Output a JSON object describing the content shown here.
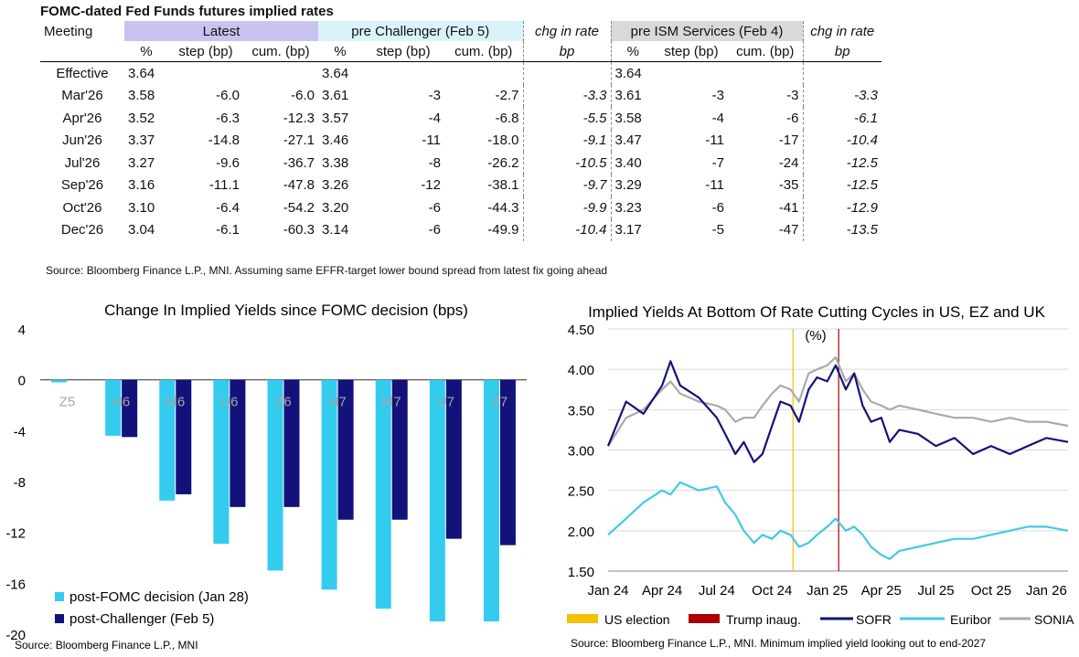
{
  "table": {
    "title": "FOMC-dated Fed Funds futures implied rates",
    "group_headers": {
      "meeting": "Meeting",
      "latest": "Latest",
      "pre_challenger": "pre Challenger (Feb 5)",
      "chg1": "chg in rate",
      "pre_ism": "pre ISM Services (Feb 4)",
      "chg2": "chg in rate"
    },
    "sub_headers": [
      "%",
      "step (bp)",
      "cum. (bp)",
      "%",
      "step (bp)",
      "cum. (bp)",
      "bp",
      "%",
      "step (bp)",
      "cum. (bp)",
      "bp"
    ],
    "rows": [
      [
        "Effective",
        "3.64",
        "",
        "",
        "3.64",
        "",
        "",
        "",
        "3.64",
        "",
        "",
        ""
      ],
      [
        "Mar'26",
        "3.58",
        "-6.0",
        "-6.0",
        "3.61",
        "-3",
        "-2.7",
        "-3.3",
        "3.61",
        "-3",
        "-3",
        "-3.3"
      ],
      [
        "Apr'26",
        "3.52",
        "-6.3",
        "-12.3",
        "3.57",
        "-4",
        "-6.8",
        "-5.5",
        "3.58",
        "-4",
        "-6",
        "-6.1"
      ],
      [
        "Jun'26",
        "3.37",
        "-14.8",
        "-27.1",
        "3.46",
        "-11",
        "-18.0",
        "-9.1",
        "3.47",
        "-11",
        "-17",
        "-10.4"
      ],
      [
        "Jul'26",
        "3.27",
        "-9.6",
        "-36.7",
        "3.38",
        "-8",
        "-26.2",
        "-10.5",
        "3.40",
        "-7",
        "-24",
        "-12.5"
      ],
      [
        "Sep'26",
        "3.16",
        "-11.1",
        "-47.8",
        "3.26",
        "-12",
        "-38.1",
        "-9.7",
        "3.29",
        "-11",
        "-35",
        "-12.5"
      ],
      [
        "Oct'26",
        "3.10",
        "-6.4",
        "-54.2",
        "3.20",
        "-6",
        "-44.3",
        "-9.9",
        "3.23",
        "-6",
        "-41",
        "-12.9"
      ],
      [
        "Dec'26",
        "3.04",
        "-6.1",
        "-60.3",
        "3.14",
        "-6",
        "-49.9",
        "-10.4",
        "3.17",
        "-5",
        "-47",
        "-13.5"
      ]
    ],
    "source": "Source: Bloomberg Finance L.P., MNI. Assuming same  EFFR-target lower bound spread from latest fix going ahead"
  },
  "colors": {
    "post_fomc": "#33ccee",
    "post_challenger": "#12127a",
    "sofr": "#12127a",
    "euribor": "#44c8e4",
    "sonia": "#aaaaaa",
    "us_election": "#f5c000",
    "trump_inaug": "#aa0000"
  },
  "chart_data": [
    {
      "type": "bar",
      "title": "Change In Implied Yields since FOMC decision (bps)",
      "categories": [
        "Z5",
        "H6",
        "M6",
        "U6",
        "Z6",
        "H7",
        "M7",
        "U7",
        "Z7"
      ],
      "series": [
        {
          "name": "post-FOMC decision (Jan 28)",
          "values": [
            -0.2,
            -4.4,
            -9.5,
            -12.9,
            -15.0,
            -16.5,
            -18.0,
            -19.0,
            -19.0
          ]
        },
        {
          "name": "post-Challenger (Feb 5)",
          "values": [
            0,
            -4.5,
            -9.0,
            -10.0,
            -10.0,
            -11.0,
            -11.0,
            -12.5,
            -13.0
          ]
        }
      ],
      "ylim": [
        -20,
        4
      ],
      "yticks": [
        4,
        0,
        -4,
        -8,
        -12,
        -16,
        -20
      ],
      "legend": "bottom-left",
      "source": "Source: Bloomberg Finance L.P., MNI"
    },
    {
      "type": "line",
      "title": "Implied Yields At Bottom Of Rate Cutting Cycles in US, EZ and UK",
      "ylabel": "(%)",
      "ylim": [
        1.5,
        4.5
      ],
      "yticks": [
        "4.50",
        "4.00",
        "3.50",
        "3.00",
        "2.50",
        "2.00",
        "1.50"
      ],
      "xticks": [
        "Jan 24",
        "Apr 24",
        "Jul 24",
        "Oct 24",
        "Jan 25",
        "Apr 25",
        "Jul 25",
        "Oct 25",
        "Jan 26"
      ],
      "x_range": [
        "2024-01-02",
        "2026-02-06"
      ],
      "x_points": [
        "2024-01-02",
        "2024-02-01",
        "2024-03-01",
        "2024-04-01",
        "2024-04-15",
        "2024-05-01",
        "2024-06-01",
        "2024-07-01",
        "2024-07-15",
        "2024-08-01",
        "2024-08-15",
        "2024-09-01",
        "2024-09-15",
        "2024-10-01",
        "2024-10-15",
        "2024-11-01",
        "2024-11-15",
        "2024-12-01",
        "2024-12-15",
        "2025-01-01",
        "2025-01-15",
        "2025-02-01",
        "2025-02-15",
        "2025-03-01",
        "2025-03-15",
        "2025-04-01",
        "2025-04-15",
        "2025-05-01",
        "2025-06-01",
        "2025-07-01",
        "2025-08-01",
        "2025-09-01",
        "2025-10-01",
        "2025-11-01",
        "2025-12-01",
        "2026-01-01",
        "2026-02-06"
      ],
      "series": [
        {
          "name": "SOFR",
          "values": [
            3.05,
            3.6,
            3.45,
            3.8,
            4.1,
            3.8,
            3.65,
            3.4,
            3.2,
            2.95,
            3.1,
            2.85,
            2.95,
            3.3,
            3.6,
            3.55,
            3.35,
            3.75,
            3.9,
            3.85,
            4.05,
            3.75,
            3.95,
            3.55,
            3.35,
            3.4,
            3.1,
            3.25,
            3.2,
            3.05,
            3.15,
            2.95,
            3.05,
            2.95,
            3.05,
            3.15,
            3.1
          ]
        },
        {
          "name": "Euribor",
          "values": [
            1.95,
            2.15,
            2.35,
            2.5,
            2.45,
            2.6,
            2.5,
            2.55,
            2.35,
            2.2,
            2.0,
            1.85,
            1.95,
            1.9,
            2.0,
            1.95,
            1.8,
            1.85,
            1.95,
            2.05,
            2.15,
            2.0,
            2.05,
            1.95,
            1.8,
            1.7,
            1.65,
            1.75,
            1.8,
            1.85,
            1.9,
            1.9,
            1.95,
            2.0,
            2.05,
            2.05,
            2.0
          ]
        },
        {
          "name": "SONIA",
          "values": [
            3.05,
            3.4,
            3.5,
            3.75,
            3.85,
            3.7,
            3.6,
            3.55,
            3.5,
            3.35,
            3.4,
            3.4,
            3.55,
            3.7,
            3.8,
            3.75,
            3.6,
            3.95,
            4.0,
            4.05,
            4.15,
            3.85,
            3.95,
            3.75,
            3.6,
            3.55,
            3.5,
            3.55,
            3.5,
            3.45,
            3.4,
            3.4,
            3.35,
            3.4,
            3.35,
            3.35,
            3.3
          ]
        }
      ],
      "vlines": [
        {
          "name": "US election",
          "x": "2024-11-05"
        },
        {
          "name": "Trump inaug.",
          "x": "2025-01-20"
        }
      ],
      "legend": "bottom",
      "source": "Source: Bloomberg Finance L.P., MNI. Minimum implied yield looking out to end-2027"
    }
  ]
}
